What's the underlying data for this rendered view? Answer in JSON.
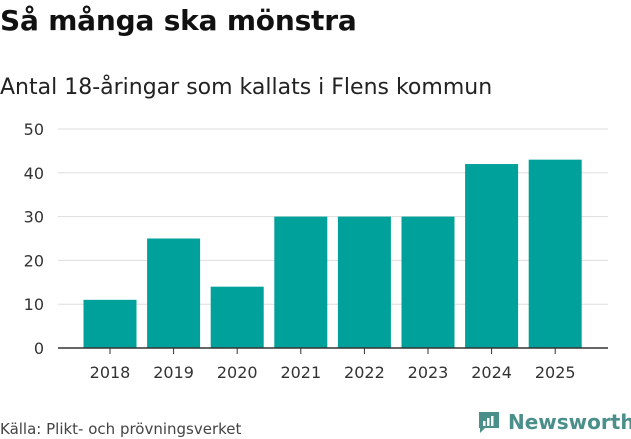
{
  "title": "Så många ska mönstra",
  "subtitle": "Antal 18-åringar som kallats i Flens kommun",
  "source": "Källa: Plikt- och prövningsverket",
  "brand": {
    "name": "Newsworthy",
    "icon": "newsworthy-chart-icon",
    "color": "#4a8f8a"
  },
  "bar_color": "#00a19a",
  "chart_data": {
    "type": "bar",
    "title": "Så många ska mönstra",
    "subtitle": "Antal 18-åringar som kallats i Flens kommun",
    "xlabel": "",
    "ylabel": "",
    "categories": [
      "2018",
      "2019",
      "2020",
      "2021",
      "2022",
      "2023",
      "2024",
      "2025"
    ],
    "values": [
      11,
      25,
      14,
      30,
      30,
      30,
      42,
      43
    ],
    "ylim": [
      0,
      50
    ],
    "yticks": [
      0,
      10,
      20,
      30,
      40,
      50
    ],
    "grid": true,
    "legend": "none"
  }
}
